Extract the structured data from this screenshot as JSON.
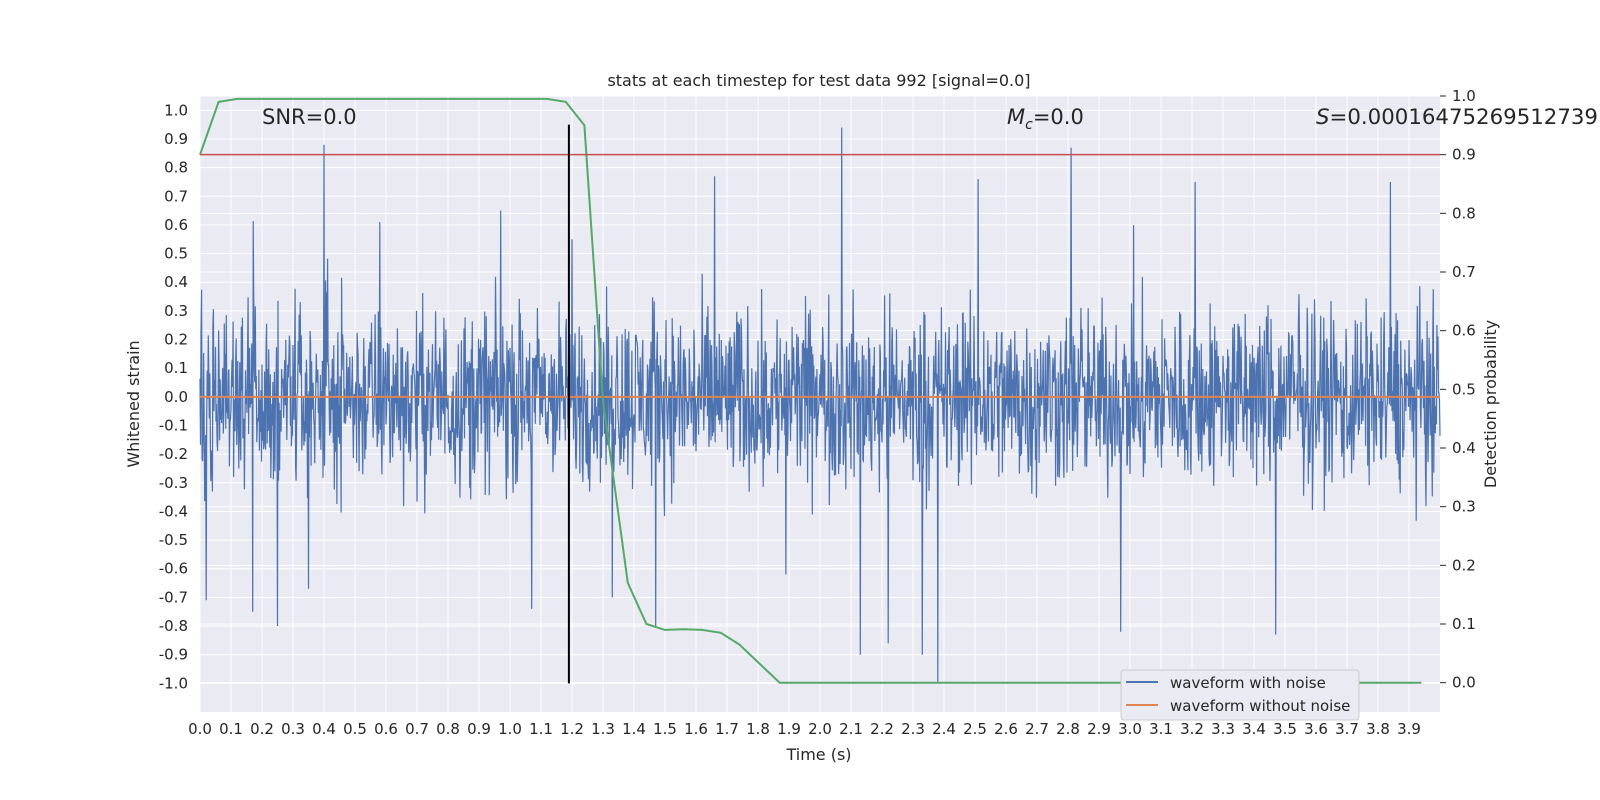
{
  "chart_data": {
    "type": "line",
    "title": "stats at each timestep for test data 992 [signal=0.0]",
    "xlabel": "Time (s)",
    "ylabel_left": "Whitened strain",
    "ylabel_right": "Detection probability",
    "xlim": [
      0.0,
      4.0
    ],
    "ylim_left": [
      -1.1,
      1.05
    ],
    "ylim_right": [
      -0.05,
      1.0
    ],
    "xticks": [
      "0.0",
      "0.1",
      "0.2",
      "0.3",
      "0.4",
      "0.5",
      "0.6",
      "0.7",
      "0.8",
      "0.9",
      "1.0",
      "1.1",
      "1.2",
      "1.3",
      "1.4",
      "1.5",
      "1.6",
      "1.7",
      "1.8",
      "1.9",
      "2.0",
      "2.1",
      "2.2",
      "2.3",
      "2.4",
      "2.5",
      "2.6",
      "2.7",
      "2.8",
      "2.9",
      "3.0",
      "3.1",
      "3.2",
      "3.3",
      "3.4",
      "3.5",
      "3.6",
      "3.7",
      "3.8",
      "3.9"
    ],
    "yticks_left": [
      "1.0",
      "0.9",
      "0.8",
      "0.7",
      "0.6",
      "0.5",
      "0.4",
      "0.3",
      "0.2",
      "0.1",
      "0.0",
      "-0.1",
      "-0.2",
      "-0.3",
      "-0.4",
      "-0.5",
      "-0.6",
      "-0.7",
      "-0.8",
      "-0.9",
      "-1.0"
    ],
    "yticks_right": [
      "1.0",
      "0.9",
      "0.8",
      "0.7",
      "0.6",
      "0.5",
      "0.4",
      "0.3",
      "0.2",
      "0.1",
      "0.0"
    ],
    "annotations": {
      "snr": "SNR=0.0",
      "mc_symbol": "M",
      "mc_sub": "c",
      "mc_value": "=0.0",
      "s_symbol": "S",
      "s_value": "=0.00016475269512739"
    },
    "legend": {
      "placement": "bottom-right",
      "entries": [
        "waveform with noise",
        "waveform without noise"
      ]
    },
    "series": [
      {
        "name": "waveform with noise",
        "axis": "left",
        "style": "dense noise trace",
        "x_range": [
          0.0,
          4.0
        ],
        "typical_amplitude": 0.35,
        "spikes": [
          {
            "x": 0.02,
            "y": -0.71
          },
          {
            "x": 0.17,
            "y": -0.75
          },
          {
            "x": 0.25,
            "y": -0.8
          },
          {
            "x": 0.35,
            "y": -0.67
          },
          {
            "x": 0.4,
            "y": 0.88
          },
          {
            "x": 0.58,
            "y": 0.61
          },
          {
            "x": 0.97,
            "y": 0.65
          },
          {
            "x": 1.07,
            "y": -0.74
          },
          {
            "x": 1.2,
            "y": 0.55
          },
          {
            "x": 1.33,
            "y": -0.7
          },
          {
            "x": 1.47,
            "y": -0.8
          },
          {
            "x": 1.66,
            "y": 0.77
          },
          {
            "x": 1.89,
            "y": -0.62
          },
          {
            "x": 2.07,
            "y": 0.94
          },
          {
            "x": 2.13,
            "y": -0.9
          },
          {
            "x": 2.22,
            "y": -0.86
          },
          {
            "x": 2.33,
            "y": -0.9
          },
          {
            "x": 2.38,
            "y": -1.0
          },
          {
            "x": 2.51,
            "y": 0.76
          },
          {
            "x": 2.81,
            "y": 0.87
          },
          {
            "x": 2.97,
            "y": -0.82
          },
          {
            "x": 3.21,
            "y": 0.75
          },
          {
            "x": 3.47,
            "y": -0.83
          },
          {
            "x": 3.84,
            "y": 0.75
          }
        ]
      },
      {
        "name": "waveform without noise",
        "axis": "left",
        "x": [
          0.0,
          4.0
        ],
        "y": [
          0.0,
          0.0
        ]
      },
      {
        "name": "detection probability",
        "axis": "right",
        "x": [
          0.0,
          0.06,
          0.12,
          1.12,
          1.18,
          1.24,
          1.3,
          1.38,
          1.44,
          1.5,
          1.56,
          1.62,
          1.68,
          1.74,
          1.81,
          1.87,
          1.94,
          3.94
        ],
        "y": [
          0.9,
          0.99,
          0.995,
          0.995,
          0.99,
          0.95,
          0.48,
          0.17,
          0.1,
          0.09,
          0.091,
          0.09,
          0.085,
          0.065,
          0.03,
          0.0,
          0.0,
          0.0
        ]
      }
    ],
    "reference_lines": [
      {
        "name": "threshold",
        "axis": "right",
        "orientation": "horizontal",
        "value": 0.9,
        "color": "#c44e52"
      },
      {
        "name": "event marker",
        "axis": "left",
        "orientation": "vertical",
        "x": 1.19,
        "y_range": [
          -1.0,
          0.95
        ],
        "color": "#000000"
      }
    ],
    "colors": {
      "noise": "#4c72b0",
      "clean": "#dd8452",
      "probability": "#55a868",
      "threshold": "#c44e52",
      "marker": "#000000",
      "plot_bg": "#eaeaf2",
      "grid": "#ffffff",
      "legend_bg": "#eaeaf2",
      "legend_border": "#cccccc"
    }
  }
}
